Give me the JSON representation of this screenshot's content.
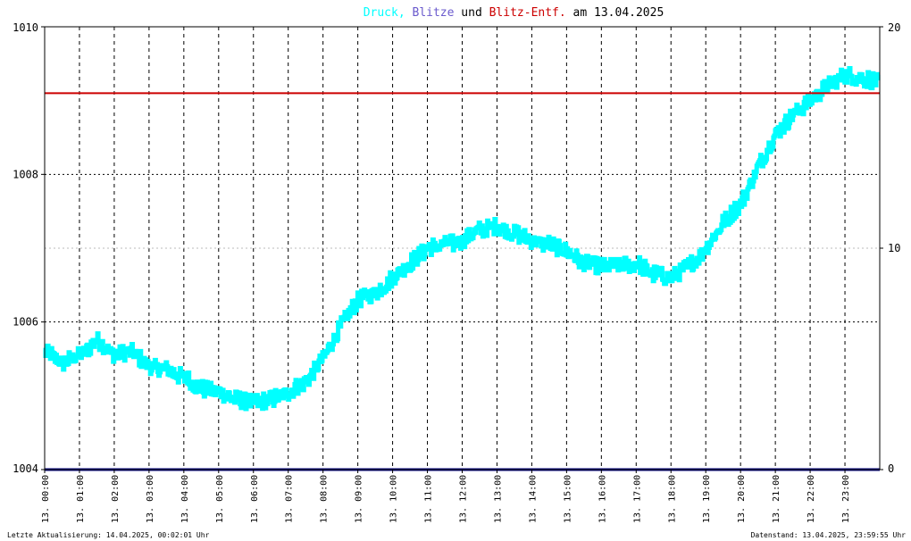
{
  "chart_data": {
    "type": "line",
    "title": {
      "parts": [
        {
          "text": "Druck,",
          "color": "#00ffff"
        },
        {
          "text": " Blitze",
          "color": "#6a5acd"
        },
        {
          "text": " und ",
          "color": "#000000"
        },
        {
          "text": "Blitz-Entf.",
          "color": "#cc0000"
        },
        {
          "text": " am 13.04.2025",
          "color": "#000000"
        }
      ]
    },
    "y_left": {
      "min": 1004,
      "max": 1010,
      "ticks": [
        "1004",
        "1006",
        "1008",
        "1010"
      ]
    },
    "y_right": {
      "min": 0,
      "max": 20,
      "ticks": [
        "0",
        "10",
        "20"
      ],
      "tick_colors": [
        "#000000",
        "#cc0000",
        "#000000"
      ]
    },
    "x_range": [
      0,
      24
    ],
    "x_ticks": [
      "13. 00:00",
      "13. 01:00",
      "13. 02:00",
      "13. 03:00",
      "13. 04:00",
      "13. 05:00",
      "13. 06:00",
      "13. 07:00",
      "13. 08:00",
      "13. 09:00",
      "13. 10:00",
      "13. 11:00",
      "13. 12:00",
      "13. 13:00",
      "13. 14:00",
      "13. 15:00",
      "13. 16:00",
      "13. 17:00",
      "13. 18:00",
      "13. 19:00",
      "13. 20:00",
      "13. 21:00",
      "13. 22:00",
      "13. 23:00"
    ],
    "grid": true,
    "series": [
      {
        "name": "Druck",
        "color": "#00ffff",
        "axis": "left",
        "x": [
          0,
          0.5,
          1,
          1.5,
          2,
          2.5,
          3,
          3.5,
          4,
          4.5,
          5,
          5.5,
          6,
          6.5,
          7,
          7.5,
          8,
          8.5,
          9,
          9.5,
          10,
          10.5,
          11,
          11.5,
          12,
          12.5,
          13,
          13.5,
          14,
          14.5,
          15,
          15.5,
          16,
          16.5,
          17,
          17.5,
          18,
          18.5,
          19,
          19.5,
          20,
          20.5,
          21,
          21.5,
          22,
          22.5,
          23,
          23.5,
          23.95
        ],
        "y": [
          1005.6,
          1005.45,
          1005.55,
          1005.75,
          1005.55,
          1005.6,
          1005.4,
          1005.35,
          1005.25,
          1005.1,
          1005.05,
          1004.95,
          1004.9,
          1004.95,
          1005.05,
          1005.2,
          1005.5,
          1005.95,
          1006.3,
          1006.4,
          1006.6,
          1006.8,
          1007.0,
          1007.05,
          1007.1,
          1007.25,
          1007.3,
          1007.2,
          1007.1,
          1007.05,
          1006.95,
          1006.8,
          1006.75,
          1006.75,
          1006.8,
          1006.65,
          1006.6,
          1006.75,
          1007.0,
          1007.35,
          1007.6,
          1008.1,
          1008.55,
          1008.8,
          1009.0,
          1009.2,
          1009.35,
          1009.3,
          1009.25
        ]
      },
      {
        "name": "Blitze",
        "color": "#000080",
        "axis": "right",
        "x": [
          0,
          24
        ],
        "y": [
          0,
          0
        ]
      },
      {
        "name": "Blitz-Entf.",
        "color": "#cc0000",
        "axis": "left",
        "x": [
          0,
          24
        ],
        "y": [
          1009.1,
          1009.1
        ]
      }
    ]
  },
  "footer": {
    "left": "Letzte Aktualisierung: 14.04.2025, 00:02:01 Uhr",
    "right": "Datenstand: 13.04.2025, 23:59:55 Uhr"
  }
}
